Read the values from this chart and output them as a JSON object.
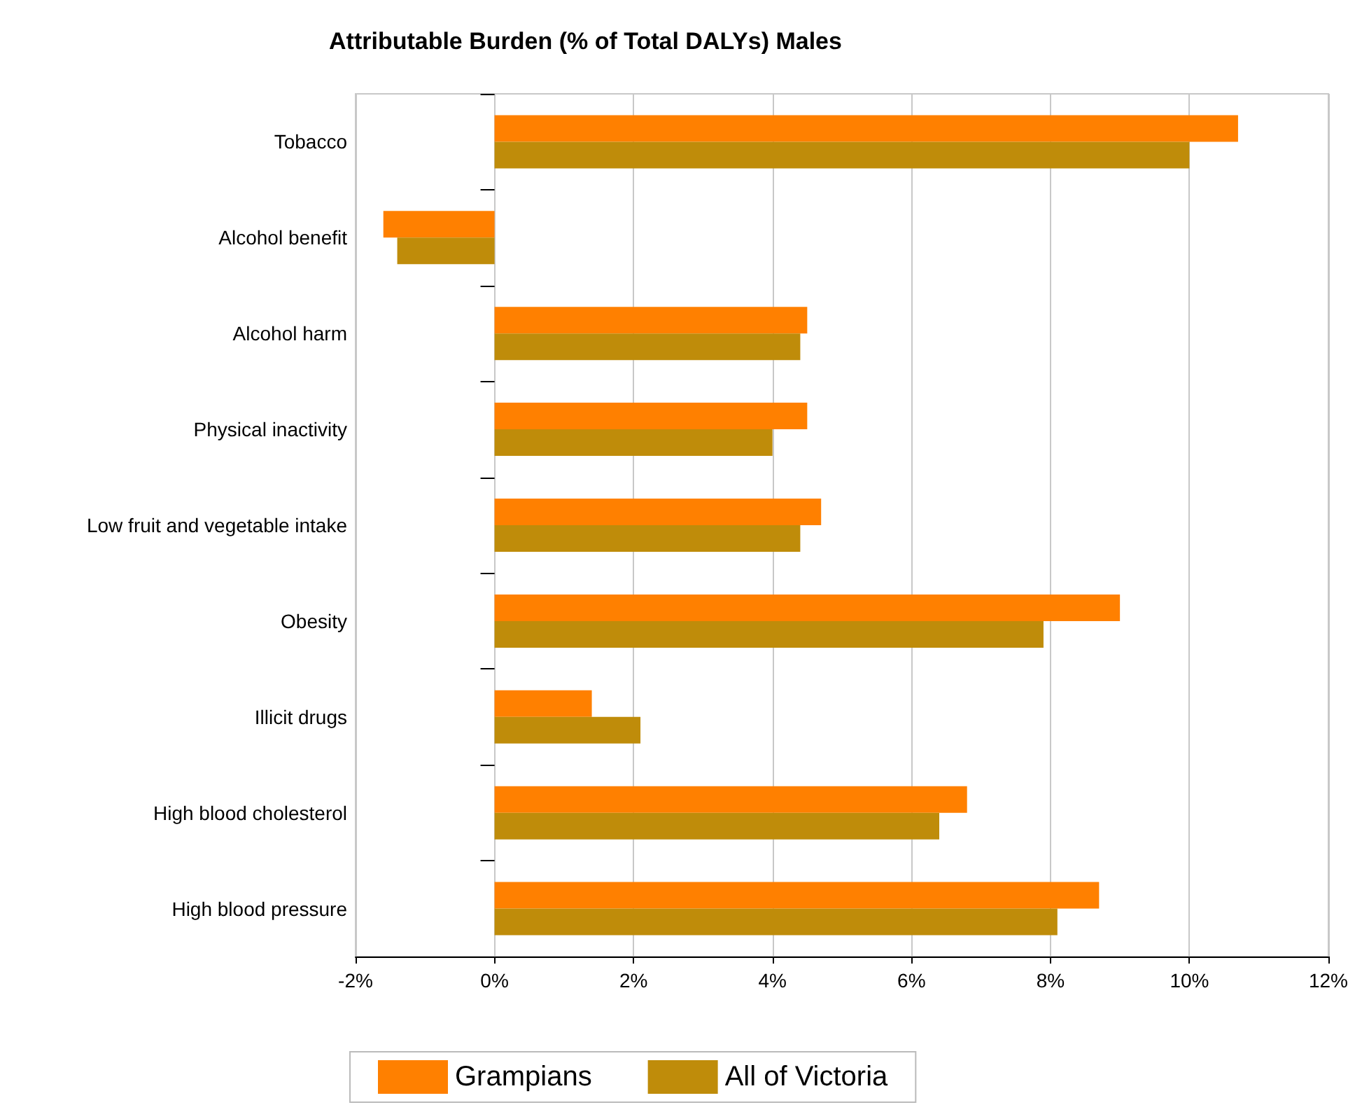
{
  "chart_data": {
    "type": "bar",
    "orientation": "horizontal",
    "title": "Attributable Burden (% of Total DALYs) Males",
    "categories": [
      "Tobacco",
      "Alcohol benefit",
      "Alcohol harm",
      "Physical inactivity",
      "Low fruit and vegetable intake",
      "Obesity",
      "Illicit drugs",
      "High blood cholesterol",
      "High blood pressure"
    ],
    "series": [
      {
        "name": "Grampians",
        "color": "#ff8000",
        "values": [
          10.7,
          -1.6,
          4.5,
          4.5,
          4.7,
          9.0,
          1.4,
          6.8,
          8.7
        ]
      },
      {
        "name": "All of Victoria",
        "color": "#bf8c0a",
        "values": [
          10.0,
          -1.4,
          4.4,
          4.0,
          4.4,
          7.9,
          2.1,
          6.4,
          8.1
        ]
      }
    ],
    "xlim": [
      -2,
      12
    ],
    "xticks": [
      {
        "value": -2,
        "label": "-2%"
      },
      {
        "value": 0,
        "label": "0%"
      },
      {
        "value": 2,
        "label": "2%"
      },
      {
        "value": 4,
        "label": "4%"
      },
      {
        "value": 6,
        "label": "6%"
      },
      {
        "value": 8,
        "label": "8%"
      },
      {
        "value": 10,
        "label": "10%"
      },
      {
        "value": 12,
        "label": "12%"
      }
    ],
    "grid": "x",
    "legend": "bottom"
  }
}
